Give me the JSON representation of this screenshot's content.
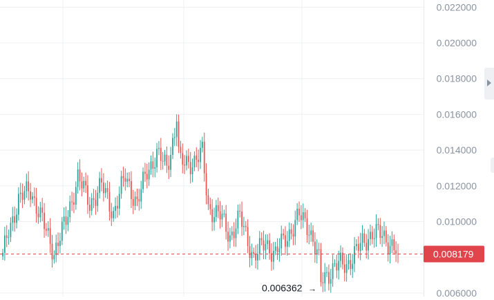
{
  "chart_data": {
    "type": "candlestick",
    "y_axis": {
      "position": "right",
      "ylim": [
        0.0058,
        0.0224
      ],
      "ticks": [
        "0.022000",
        "0.020000",
        "0.018000",
        "0.016000",
        "0.014000",
        "0.012000",
        "0.010000",
        "0.008000",
        "0.006000"
      ],
      "tick_values": [
        0.022,
        0.02,
        0.018,
        0.016,
        0.014,
        0.012,
        0.01,
        0.008,
        0.006
      ]
    },
    "grid": true,
    "colors": {
      "up": "#26a69a",
      "down": "#ef5350",
      "price_line": "#e0454b",
      "grid": "#eef0f3",
      "axis_text": "#8a93a0",
      "label_text": "#ffffff",
      "annotation_text": "#131722"
    },
    "current_price": {
      "value": 0.008179,
      "label": "0.008179"
    },
    "low_marker": {
      "value": 0.006362,
      "label": "0.006362",
      "arrow": "→"
    },
    "segments": [
      {
        "index": 0,
        "value": 0.008
      },
      {
        "index": 3,
        "value": 0.0095
      },
      {
        "index": 8,
        "value": 0.0112
      },
      {
        "index": 14,
        "value": 0.0118
      },
      {
        "index": 20,
        "value": 0.01
      },
      {
        "index": 26,
        "value": 0.0083
      },
      {
        "index": 32,
        "value": 0.01
      },
      {
        "index": 38,
        "value": 0.0125
      },
      {
        "index": 44,
        "value": 0.011
      },
      {
        "index": 50,
        "value": 0.012
      },
      {
        "index": 56,
        "value": 0.0105
      },
      {
        "index": 62,
        "value": 0.0125
      },
      {
        "index": 68,
        "value": 0.011
      },
      {
        "index": 73,
        "value": 0.0128
      },
      {
        "index": 78,
        "value": 0.0138
      },
      {
        "index": 83,
        "value": 0.013
      },
      {
        "index": 87,
        "value": 0.015
      },
      {
        "index": 90,
        "value": 0.0132
      },
      {
        "index": 97,
        "value": 0.0134
      },
      {
        "index": 101,
        "value": 0.0138
      },
      {
        "index": 104,
        "value": 0.0108
      },
      {
        "index": 110,
        "value": 0.0103
      },
      {
        "index": 115,
        "value": 0.0092
      },
      {
        "index": 120,
        "value": 0.0102
      },
      {
        "index": 127,
        "value": 0.008
      },
      {
        "index": 133,
        "value": 0.0088
      },
      {
        "index": 138,
        "value": 0.0082
      },
      {
        "index": 144,
        "value": 0.0092
      },
      {
        "index": 150,
        "value": 0.0103
      },
      {
        "index": 155,
        "value": 0.0097
      },
      {
        "index": 159,
        "value": 0.0082
      },
      {
        "index": 162,
        "value": 0.0068
      },
      {
        "index": 168,
        "value": 0.0075
      },
      {
        "index": 174,
        "value": 0.0076
      },
      {
        "index": 180,
        "value": 0.0085
      },
      {
        "index": 187,
        "value": 0.0094
      },
      {
        "index": 192,
        "value": 0.0092
      },
      {
        "index": 197,
        "value": 0.0087
      },
      {
        "index": 200,
        "value": 0.0082
      }
    ],
    "candles_count": 201
  }
}
